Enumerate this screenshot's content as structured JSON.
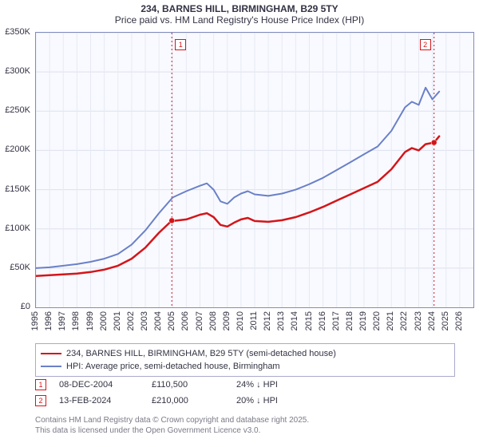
{
  "title_line1": "234, BARNES HILL, BIRMINGHAM, B29 5TY",
  "title_line2": "Price paid vs. HM Land Registry's House Price Index (HPI)",
  "chart": {
    "type": "line",
    "background_color": "#f9faff",
    "border_color": "#7f8bbf",
    "grid_color_y": "#dde0ee",
    "grid_color_x": "#e7e9f3",
    "xlim": [
      1995,
      2027
    ],
    "ylim": [
      0,
      350000
    ],
    "ytick_step": 50000,
    "ytick_labels": [
      "£0",
      "£50K",
      "£100K",
      "£150K",
      "£200K",
      "£250K",
      "£300K",
      "£350K"
    ],
    "xtick_step": 1,
    "xtick_labels": [
      "1995",
      "1996",
      "1997",
      "1998",
      "1999",
      "2000",
      "2001",
      "2002",
      "2003",
      "2004",
      "2005",
      "2006",
      "2007",
      "2008",
      "2009",
      "2010",
      "2011",
      "2012",
      "2013",
      "2014",
      "2015",
      "2016",
      "2017",
      "2018",
      "2019",
      "2020",
      "2021",
      "2022",
      "2023",
      "2024",
      "2025",
      "2026"
    ],
    "label_fontsize": 11,
    "title_fontsize": 12,
    "series": [
      {
        "name": "hpi",
        "label": "HPI: Average price, semi-detached house, Birmingham",
        "color": "#6a80c8",
        "line_width": 2,
        "points": [
          [
            1995,
            50000
          ],
          [
            1996,
            51000
          ],
          [
            1997,
            53000
          ],
          [
            1998,
            55000
          ],
          [
            1999,
            58000
          ],
          [
            2000,
            62000
          ],
          [
            2001,
            68000
          ],
          [
            2002,
            80000
          ],
          [
            2003,
            98000
          ],
          [
            2004,
            120000
          ],
          [
            2005,
            140000
          ],
          [
            2006,
            148000
          ],
          [
            2007,
            155000
          ],
          [
            2007.5,
            158000
          ],
          [
            2008,
            150000
          ],
          [
            2008.5,
            135000
          ],
          [
            2009,
            132000
          ],
          [
            2009.5,
            140000
          ],
          [
            2010,
            145000
          ],
          [
            2010.5,
            148000
          ],
          [
            2011,
            144000
          ],
          [
            2012,
            142000
          ],
          [
            2013,
            145000
          ],
          [
            2014,
            150000
          ],
          [
            2015,
            157000
          ],
          [
            2016,
            165000
          ],
          [
            2017,
            175000
          ],
          [
            2018,
            185000
          ],
          [
            2019,
            195000
          ],
          [
            2020,
            205000
          ],
          [
            2021,
            225000
          ],
          [
            2022,
            255000
          ],
          [
            2022.5,
            262000
          ],
          [
            2023,
            258000
          ],
          [
            2023.5,
            280000
          ],
          [
            2024,
            265000
          ],
          [
            2024.5,
            275000
          ]
        ]
      },
      {
        "name": "property",
        "label": "234, BARNES HILL, BIRMINGHAM, B29 5TY (semi-detached house)",
        "color": "#d4151a",
        "line_width": 2.5,
        "points": [
          [
            1995,
            40000
          ],
          [
            1996,
            41000
          ],
          [
            1997,
            42000
          ],
          [
            1998,
            43000
          ],
          [
            1999,
            45000
          ],
          [
            2000,
            48000
          ],
          [
            2001,
            53000
          ],
          [
            2002,
            62000
          ],
          [
            2003,
            76000
          ],
          [
            2004,
            95000
          ],
          [
            2004.94,
            110500
          ],
          [
            2005,
            110000
          ],
          [
            2006,
            112000
          ],
          [
            2007,
            118000
          ],
          [
            2007.5,
            120000
          ],
          [
            2008,
            115000
          ],
          [
            2008.5,
            105000
          ],
          [
            2009,
            103000
          ],
          [
            2009.5,
            108000
          ],
          [
            2010,
            112000
          ],
          [
            2010.5,
            114000
          ],
          [
            2011,
            110000
          ],
          [
            2012,
            109000
          ],
          [
            2013,
            111000
          ],
          [
            2014,
            115000
          ],
          [
            2015,
            121000
          ],
          [
            2016,
            128000
          ],
          [
            2017,
            136000
          ],
          [
            2018,
            144000
          ],
          [
            2019,
            152000
          ],
          [
            2020,
            160000
          ],
          [
            2021,
            176000
          ],
          [
            2022,
            198000
          ],
          [
            2022.5,
            203000
          ],
          [
            2023,
            200000
          ],
          [
            2023.5,
            208000
          ],
          [
            2024.12,
            210000
          ],
          [
            2024.5,
            218000
          ]
        ],
        "markers": [
          {
            "x": 2004.94,
            "y": 110500
          },
          {
            "x": 2024.12,
            "y": 210000
          }
        ]
      }
    ],
    "event_markers": [
      {
        "id": "1",
        "x": 2004.94,
        "color": "#d4151a",
        "label_side": "right"
      },
      {
        "id": "2",
        "x": 2024.12,
        "color": "#d4151a",
        "label_side": "left"
      }
    ],
    "legend": {
      "border_color": "#aaaacc",
      "fontsize": 11
    }
  },
  "events_table": {
    "rows": [
      {
        "id": "1",
        "color": "#d4151a",
        "date": "08-DEC-2004",
        "price": "£110,500",
        "diff": "24% ↓ HPI"
      },
      {
        "id": "2",
        "color": "#d4151a",
        "date": "13-FEB-2024",
        "price": "£210,000",
        "diff": "20% ↓ HPI"
      }
    ]
  },
  "attribution": {
    "line1": "Contains HM Land Registry data © Crown copyright and database right 2025.",
    "line2": "This data is licensed under the Open Government Licence v3.0."
  }
}
